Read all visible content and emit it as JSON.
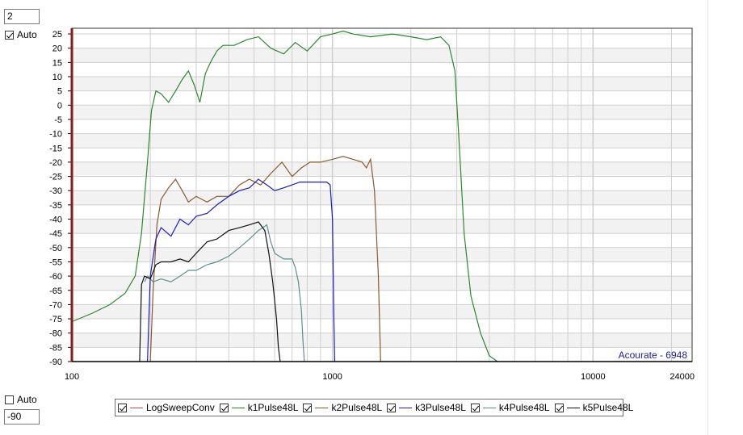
{
  "controls": {
    "ymax_value": "2",
    "ymax_auto_label": "Auto",
    "ymax_auto_checked": true,
    "ymin_auto_label": "Auto",
    "ymin_auto_checked": false,
    "ymin_value": "-90"
  },
  "watermark": "Acourate - 6948",
  "colors": {
    "LogSweepConv": "#e04040",
    "k1Pulse48L": "#2a8a2a",
    "k2Pulse48L": "#8b5a2b",
    "k3Pulse48L": "#1c1cc8",
    "k4Pulse48L": "#5c9090",
    "k5Pulse48L": "#111111",
    "grid": "#cfcfcf",
    "band": "#f2f2f2",
    "leftAxis": "#8b1a1a"
  },
  "chart_data": {
    "type": "line",
    "title": "",
    "xlabel": "",
    "ylabel": "",
    "xscale": "log",
    "xlim": [
      100,
      24000
    ],
    "ylim": [
      -90,
      27
    ],
    "x_ticks": [
      "100",
      "1000",
      "10000",
      "24000"
    ],
    "y_ticks": [
      "25",
      "20",
      "15",
      "10",
      "5",
      "0",
      "-5",
      "-10",
      "-15",
      "-20",
      "-25",
      "-30",
      "-35",
      "-40",
      "-45",
      "-50",
      "-55",
      "-60",
      "-65",
      "-70",
      "-75",
      "-80",
      "-85",
      "-90"
    ],
    "grid": true,
    "legend_position": "bottom",
    "series": [
      {
        "name": "LogSweepConv",
        "checked": true,
        "x": [],
        "y": []
      },
      {
        "name": "k1Pulse48L",
        "checked": true,
        "x": [
          100,
          120,
          140,
          160,
          175,
          185,
          195,
          202,
          210,
          220,
          235,
          250,
          265,
          280,
          295,
          310,
          325,
          340,
          360,
          380,
          420,
          470,
          520,
          580,
          650,
          720,
          800,
          900,
          1000,
          1100,
          1200,
          1400,
          1700,
          2000,
          2300,
          2600,
          2800,
          2950,
          3050,
          3200,
          3400,
          3700,
          4000,
          4300
        ],
        "y": [
          -76,
          -73,
          -70,
          -66,
          -60,
          -45,
          -20,
          -2,
          5,
          4,
          1,
          5,
          9,
          12,
          7,
          1,
          11,
          15,
          19,
          21,
          21,
          23,
          24,
          20,
          18,
          22,
          19,
          24,
          25,
          26,
          25,
          24,
          25,
          24,
          23,
          24,
          21,
          12,
          -10,
          -45,
          -67,
          -80,
          -88,
          -90
        ]
      },
      {
        "name": "k2Pulse48L",
        "checked": true,
        "x": [
          200,
          205,
          212,
          220,
          235,
          250,
          265,
          280,
          300,
          330,
          360,
          400,
          440,
          480,
          530,
          580,
          640,
          700,
          760,
          820,
          900,
          1000,
          1100,
          1200,
          1300,
          1350,
          1400,
          1450,
          1500,
          1530
        ],
        "y": [
          -90,
          -65,
          -42,
          -33,
          -29,
          -26,
          -30,
          -34,
          -32,
          -34,
          -32,
          -32,
          -28,
          -26,
          -28,
          -24,
          -20,
          -25,
          -22,
          -20,
          -20,
          -19,
          -18,
          -19,
          -20,
          -22,
          -19,
          -30,
          -60,
          -90
        ]
      },
      {
        "name": "k3Pulse48L",
        "checked": true,
        "x": [
          195,
          200,
          210,
          220,
          240,
          260,
          280,
          300,
          330,
          360,
          400,
          440,
          480,
          520,
          560,
          600,
          650,
          700,
          750,
          800,
          850,
          900,
          950,
          980,
          1000,
          1010,
          1020
        ],
        "y": [
          -90,
          -60,
          -47,
          -43,
          -46,
          -40,
          -42,
          -39,
          -38,
          -35,
          -32,
          -30,
          -29,
          -26,
          -28,
          -30,
          -29,
          -28,
          -27,
          -27,
          -27,
          -27,
          -27,
          -28,
          -40,
          -70,
          -90
        ]
      },
      {
        "name": "k4Pulse48L",
        "checked": true,
        "x": [
          190,
          195,
          205,
          220,
          240,
          260,
          280,
          300,
          330,
          360,
          400,
          440,
          480,
          520,
          560,
          580,
          600,
          650,
          700,
          720,
          740,
          760,
          770,
          780
        ],
        "y": [
          -62,
          -60,
          -62,
          -61,
          -62,
          -60,
          -58,
          -58,
          -56,
          -55,
          -53,
          -50,
          -47,
          -44,
          -42,
          -48,
          -52,
          -54,
          -54,
          -57,
          -62,
          -72,
          -82,
          -90
        ]
      },
      {
        "name": "k5Pulse48L",
        "checked": true,
        "x": [
          182,
          185,
          190,
          200,
          210,
          220,
          240,
          260,
          280,
          300,
          330,
          360,
          400,
          440,
          480,
          520,
          550,
          570,
          590,
          610,
          620,
          630
        ],
        "y": [
          -90,
          -63,
          -60,
          -61,
          -56,
          -55,
          -55,
          -54,
          -55,
          -52,
          -48,
          -47,
          -44,
          -43,
          -42,
          -41,
          -44,
          -52,
          -62,
          -75,
          -85,
          -90
        ]
      }
    ]
  }
}
